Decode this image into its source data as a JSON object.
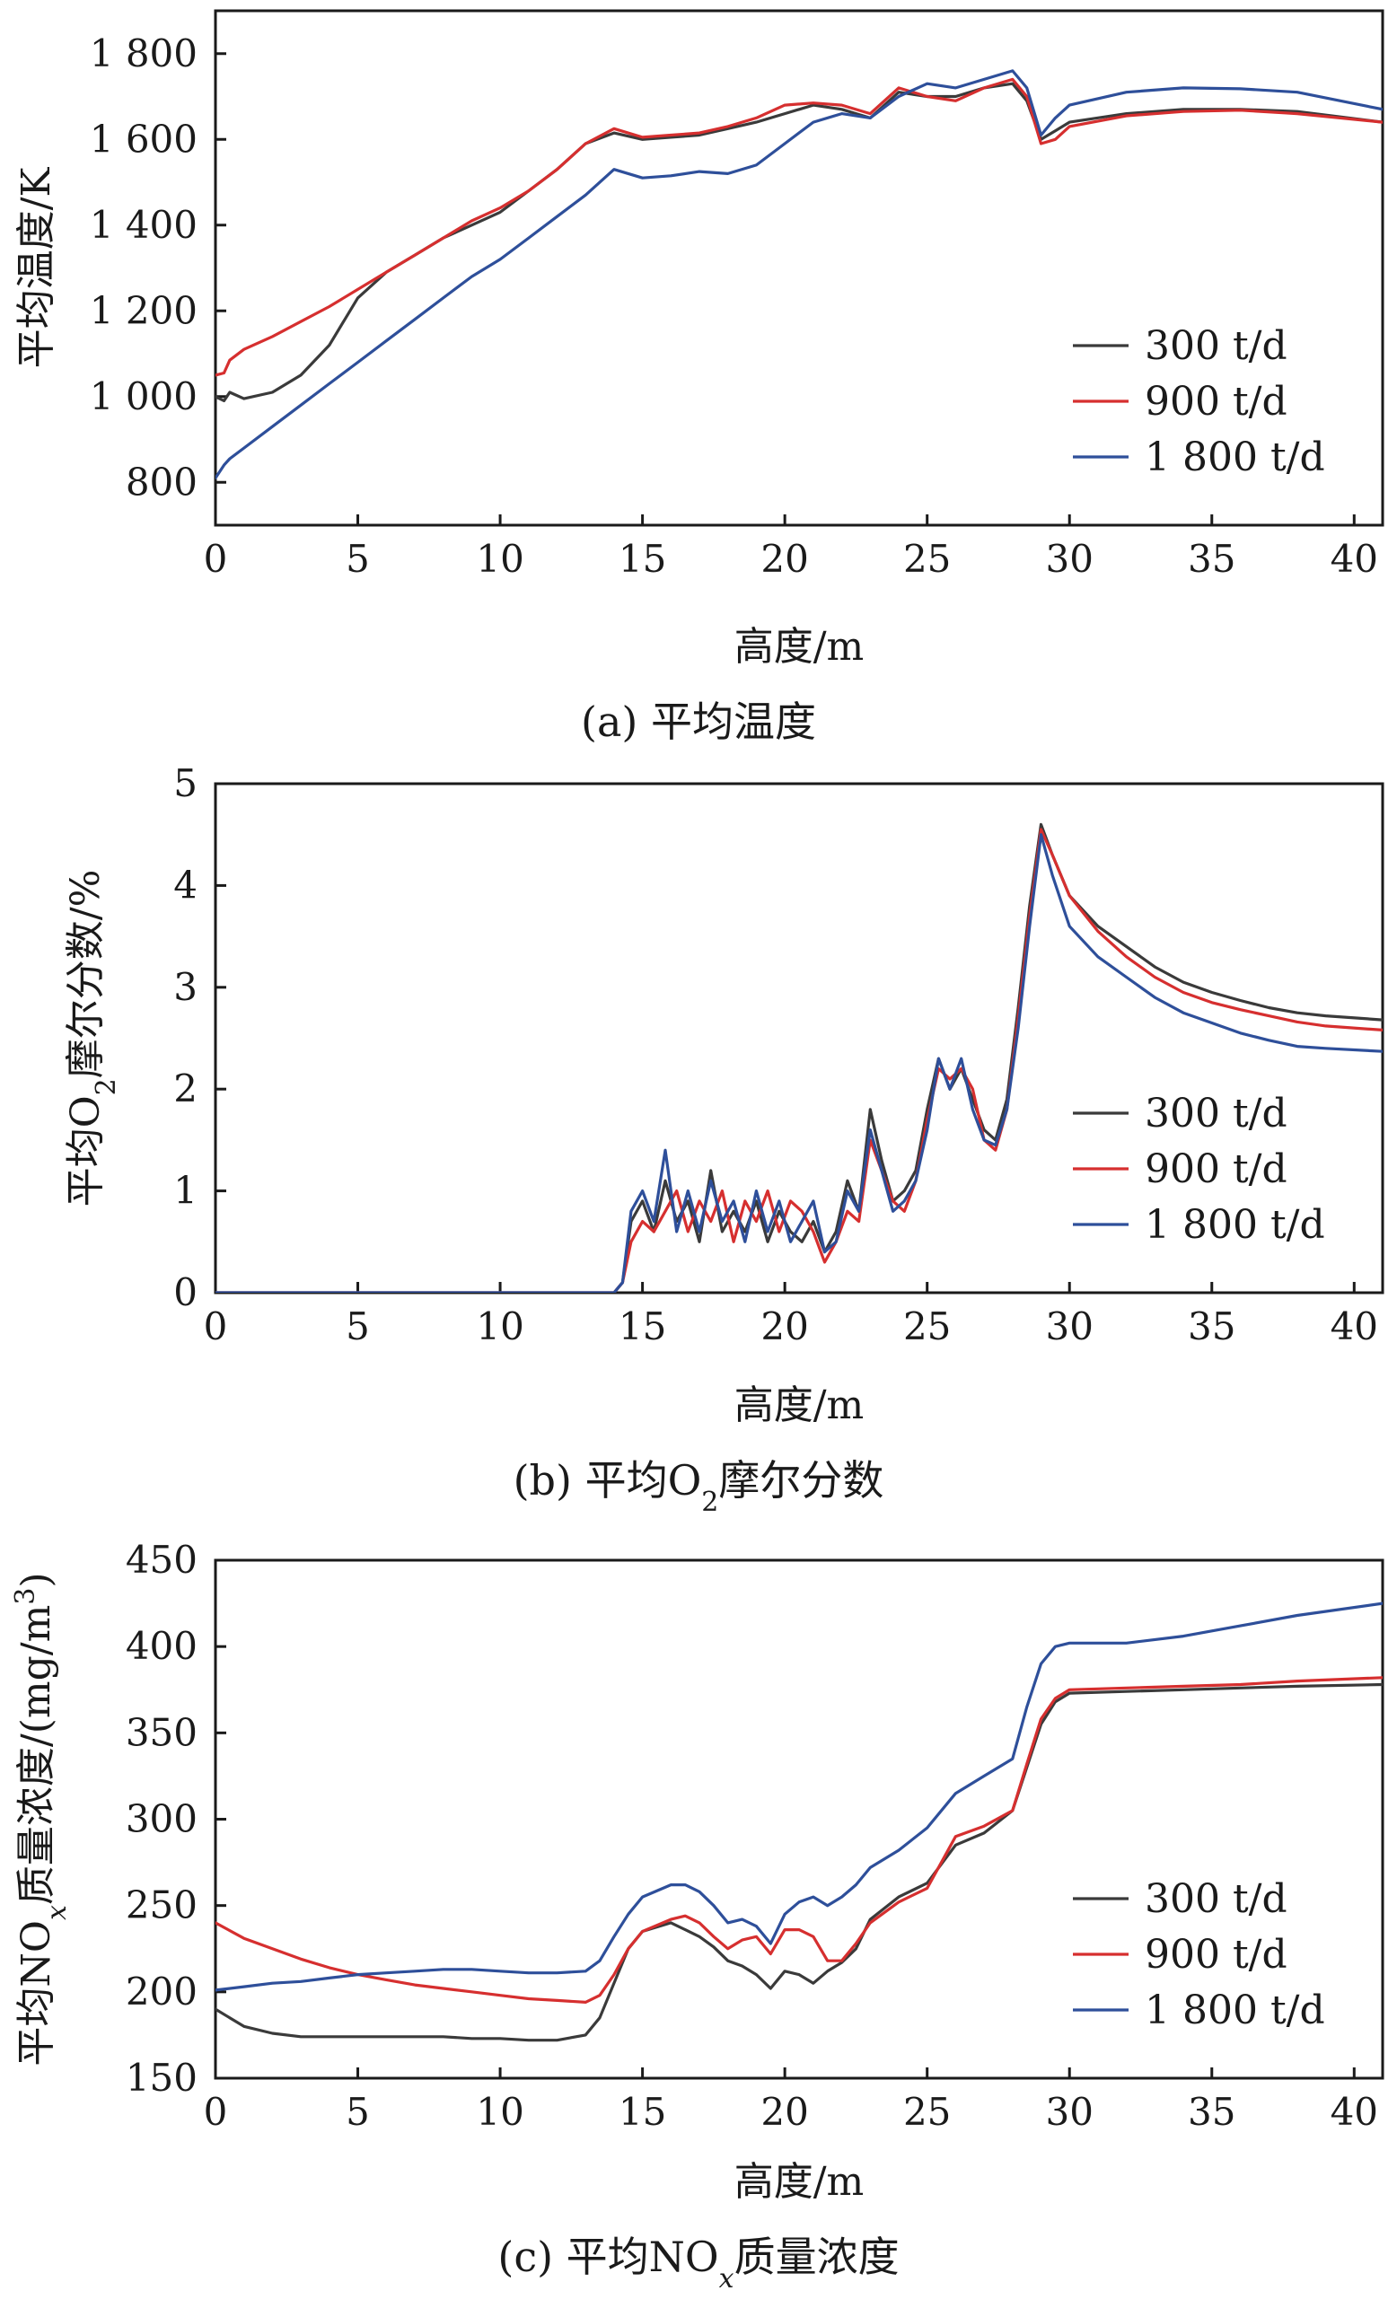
{
  "colors": {
    "s300": "#3a3a3a",
    "s900": "#d62f2f",
    "s1800": "#2e4f9a"
  },
  "chart_data": [
    {
      "id": "a",
      "type": "line",
      "ylabel": "平均温度/K",
      "xlabel": "高度/m",
      "caption": "(a) 平均温度",
      "xlim": [
        0,
        41
      ],
      "ylim": [
        700,
        1900
      ],
      "xticks": [
        0,
        5,
        10,
        15,
        20,
        25,
        30,
        35,
        40
      ],
      "xtick_labels": [
        "0",
        "5",
        "10",
        "15",
        "20",
        "25",
        "30",
        "35",
        "40"
      ],
      "yticks": [
        800,
        1000,
        1200,
        1400,
        1600,
        1800
      ],
      "ytick_labels": [
        "800",
        "1 000",
        "1 200",
        "1 400",
        "1 600",
        "1 800"
      ],
      "legend": [
        "300 t/d",
        "900 t/d",
        "1 800 t/d"
      ],
      "series": [
        {
          "name": "300 t/d",
          "x": [
            0,
            0.3,
            0.5,
            1,
            2,
            3,
            4,
            5,
            6,
            7,
            8,
            9,
            10,
            11,
            12,
            13,
            14,
            15,
            16,
            17,
            18,
            19,
            20,
            21,
            22,
            23,
            24,
            25,
            26,
            27,
            28,
            28.5,
            29,
            29.5,
            30,
            32,
            34,
            36,
            38,
            41
          ],
          "y": [
            1000,
            990,
            1010,
            995,
            1010,
            1050,
            1120,
            1230,
            1290,
            1330,
            1370,
            1400,
            1430,
            1480,
            1530,
            1590,
            1615,
            1600,
            1605,
            1610,
            1625,
            1640,
            1660,
            1680,
            1670,
            1650,
            1710,
            1700,
            1700,
            1720,
            1730,
            1690,
            1600,
            1620,
            1640,
            1660,
            1670,
            1670,
            1665,
            1640
          ]
        },
        {
          "name": "900 t/d",
          "x": [
            0,
            0.3,
            0.5,
            1,
            2,
            3,
            4,
            5,
            6,
            7,
            8,
            9,
            10,
            11,
            12,
            13,
            14,
            15,
            16,
            17,
            18,
            19,
            20,
            21,
            22,
            23,
            24,
            25,
            26,
            27,
            28,
            28.5,
            29,
            29.5,
            30,
            32,
            34,
            36,
            38,
            41
          ],
          "y": [
            1050,
            1055,
            1085,
            1110,
            1140,
            1175,
            1210,
            1250,
            1290,
            1330,
            1370,
            1410,
            1440,
            1480,
            1530,
            1590,
            1625,
            1605,
            1610,
            1615,
            1630,
            1650,
            1680,
            1685,
            1680,
            1660,
            1720,
            1700,
            1690,
            1720,
            1740,
            1700,
            1590,
            1600,
            1630,
            1655,
            1665,
            1668,
            1660,
            1640
          ]
        },
        {
          "name": "1 800 t/d",
          "x": [
            0,
            0.3,
            0.5,
            1,
            2,
            3,
            4,
            5,
            6,
            7,
            8,
            9,
            10,
            11,
            12,
            13,
            14,
            15,
            16,
            17,
            18,
            19,
            20,
            21,
            22,
            23,
            24,
            25,
            26,
            27,
            28,
            28.5,
            29,
            29.5,
            30,
            32,
            34,
            36,
            38,
            41
          ],
          "y": [
            810,
            840,
            855,
            880,
            930,
            980,
            1030,
            1080,
            1130,
            1180,
            1230,
            1280,
            1320,
            1370,
            1420,
            1470,
            1530,
            1510,
            1515,
            1525,
            1520,
            1540,
            1590,
            1640,
            1660,
            1650,
            1700,
            1730,
            1720,
            1740,
            1760,
            1720,
            1610,
            1650,
            1680,
            1710,
            1720,
            1718,
            1710,
            1670
          ]
        }
      ]
    },
    {
      "id": "b",
      "type": "line",
      "ylabel": "平均O",
      "ylabel_sub": "2",
      "ylabel_rest": "摩尔分数/%",
      "xlabel": "高度/m",
      "caption": "(b) 平均O",
      "caption_sub": "2",
      "caption_rest": "摩尔分数",
      "xlim": [
        0,
        41
      ],
      "ylim": [
        0,
        5
      ],
      "xticks": [
        0,
        5,
        10,
        15,
        20,
        25,
        30,
        35,
        40
      ],
      "xtick_labels": [
        "0",
        "5",
        "10",
        "15",
        "20",
        "25",
        "30",
        "35",
        "40"
      ],
      "yticks": [
        0,
        1,
        2,
        3,
        4,
        5
      ],
      "ytick_labels": [
        "0",
        "1",
        "2",
        "3",
        "4",
        "5"
      ],
      "legend": [
        "300 t/d",
        "900 t/d",
        "1 800 t/d"
      ],
      "series": [
        {
          "name": "300 t/d",
          "x": [
            0,
            14,
            14.3,
            14.6,
            15,
            15.4,
            15.8,
            16.2,
            16.6,
            17,
            17.4,
            17.8,
            18.2,
            18.6,
            19,
            19.4,
            19.8,
            20.2,
            20.6,
            21,
            21.4,
            21.8,
            22.2,
            22.6,
            23,
            23.4,
            23.8,
            24.2,
            24.6,
            25,
            25.4,
            25.8,
            26.2,
            26.6,
            27,
            27.4,
            27.8,
            28.2,
            28.6,
            29,
            29.4,
            30,
            31,
            32,
            33,
            34,
            35,
            36,
            37,
            38,
            39,
            41
          ],
          "y": [
            0,
            0,
            0.1,
            0.7,
            0.9,
            0.6,
            1.1,
            0.7,
            0.9,
            0.5,
            1.2,
            0.6,
            0.8,
            0.6,
            0.9,
            0.5,
            0.8,
            0.6,
            0.5,
            0.7,
            0.4,
            0.6,
            1.1,
            0.8,
            1.8,
            1.3,
            0.9,
            1.0,
            1.2,
            1.8,
            2.3,
            2.0,
            2.2,
            1.9,
            1.6,
            1.5,
            1.9,
            2.8,
            3.8,
            4.6,
            4.3,
            3.9,
            3.6,
            3.4,
            3.2,
            3.05,
            2.95,
            2.87,
            2.8,
            2.75,
            2.72,
            2.68
          ]
        },
        {
          "name": "900 t/d",
          "x": [
            0,
            14,
            14.3,
            14.6,
            15,
            15.4,
            15.8,
            16.2,
            16.6,
            17,
            17.4,
            17.8,
            18.2,
            18.6,
            19,
            19.4,
            19.8,
            20.2,
            20.6,
            21,
            21.4,
            21.8,
            22.2,
            22.6,
            23,
            23.4,
            23.8,
            24.2,
            24.6,
            25,
            25.4,
            25.8,
            26.2,
            26.6,
            27,
            27.4,
            27.8,
            28.2,
            28.6,
            29,
            29.4,
            30,
            31,
            32,
            33,
            34,
            35,
            36,
            37,
            38,
            39,
            41
          ],
          "y": [
            0,
            0,
            0.1,
            0.5,
            0.7,
            0.6,
            0.8,
            1.0,
            0.6,
            0.9,
            0.7,
            1.0,
            0.5,
            0.9,
            0.7,
            1.0,
            0.6,
            0.9,
            0.8,
            0.6,
            0.3,
            0.5,
            0.8,
            0.7,
            1.5,
            1.2,
            0.9,
            0.8,
            1.1,
            1.7,
            2.2,
            2.1,
            2.2,
            2.0,
            1.5,
            1.4,
            1.8,
            2.7,
            3.7,
            4.55,
            4.3,
            3.9,
            3.55,
            3.3,
            3.1,
            2.95,
            2.85,
            2.78,
            2.72,
            2.66,
            2.62,
            2.58
          ]
        },
        {
          "name": "1 800 t/d",
          "x": [
            0,
            14,
            14.3,
            14.6,
            15,
            15.4,
            15.8,
            16.2,
            16.6,
            17,
            17.4,
            17.8,
            18.2,
            18.6,
            19,
            19.4,
            19.8,
            20.2,
            20.6,
            21,
            21.4,
            21.8,
            22.2,
            22.6,
            23,
            23.4,
            23.8,
            24.2,
            24.6,
            25,
            25.4,
            25.8,
            26.2,
            26.6,
            27,
            27.4,
            27.8,
            28.2,
            28.6,
            29,
            29.4,
            30,
            31,
            32,
            33,
            34,
            35,
            36,
            37,
            38,
            39,
            41
          ],
          "y": [
            0,
            0,
            0.1,
            0.8,
            1.0,
            0.7,
            1.4,
            0.6,
            1.0,
            0.6,
            1.1,
            0.7,
            0.9,
            0.5,
            1.0,
            0.6,
            0.9,
            0.5,
            0.7,
            0.9,
            0.4,
            0.5,
            1.0,
            0.8,
            1.6,
            1.2,
            0.8,
            0.9,
            1.1,
            1.6,
            2.3,
            2.0,
            2.3,
            1.8,
            1.5,
            1.45,
            1.8,
            2.6,
            3.6,
            4.5,
            4.1,
            3.6,
            3.3,
            3.1,
            2.9,
            2.75,
            2.65,
            2.55,
            2.48,
            2.42,
            2.4,
            2.37
          ]
        }
      ]
    },
    {
      "id": "c",
      "type": "line",
      "ylabel": "平均NO",
      "ylabel_sub": "x",
      "ylabel_rest": "质量浓度/(mg/m",
      "ylabel_sup": "3",
      "ylabel_end": ")",
      "xlabel": "高度/m",
      "caption": "(c) 平均NO",
      "caption_sub": "x",
      "caption_rest": "质量浓度",
      "xlim": [
        0,
        41
      ],
      "ylim": [
        150,
        450
      ],
      "xticks": [
        0,
        5,
        10,
        15,
        20,
        25,
        30,
        35,
        40
      ],
      "xtick_labels": [
        "0",
        "5",
        "10",
        "15",
        "20",
        "25",
        "30",
        "35",
        "40"
      ],
      "yticks": [
        150,
        200,
        250,
        300,
        350,
        400,
        450
      ],
      "ytick_labels": [
        "150",
        "200",
        "250",
        "300",
        "350",
        "400",
        "450"
      ],
      "legend": [
        "300 t/d",
        "900 t/d",
        "1 800 t/d"
      ],
      "series": [
        {
          "name": "300 t/d",
          "x": [
            0,
            1,
            2,
            3,
            4,
            5,
            6,
            7,
            8,
            9,
            10,
            11,
            12,
            13,
            13.5,
            14,
            14.5,
            15,
            16,
            16.5,
            17,
            17.5,
            18,
            18.5,
            19,
            19.5,
            20,
            20.5,
            21,
            21.5,
            22,
            22.5,
            23,
            24,
            25,
            26,
            27,
            28,
            28.5,
            29,
            29.5,
            30,
            32,
            34,
            36,
            38,
            41
          ],
          "y": [
            190,
            180,
            176,
            174,
            174,
            174,
            174,
            174,
            174,
            173,
            173,
            172,
            172,
            175,
            185,
            205,
            225,
            235,
            240,
            236,
            232,
            226,
            218,
            215,
            210,
            202,
            212,
            210,
            205,
            212,
            217,
            225,
            242,
            255,
            263,
            285,
            292,
            305,
            330,
            355,
            368,
            373,
            374,
            375,
            376,
            377,
            378
          ]
        },
        {
          "name": "900 t/d",
          "x": [
            0,
            1,
            2,
            3,
            4,
            5,
            6,
            7,
            8,
            9,
            10,
            11,
            12,
            13,
            13.5,
            14,
            14.5,
            15,
            16,
            16.5,
            17,
            17.5,
            18,
            18.5,
            19,
            19.5,
            20,
            20.5,
            21,
            21.5,
            22,
            22.5,
            23,
            24,
            25,
            26,
            27,
            28,
            28.5,
            29,
            29.5,
            30,
            32,
            34,
            36,
            38,
            41
          ],
          "y": [
            240,
            231,
            225,
            219,
            214,
            210,
            207,
            204,
            202,
            200,
            198,
            196,
            195,
            194,
            198,
            210,
            225,
            235,
            242,
            244,
            240,
            232,
            225,
            230,
            232,
            222,
            236,
            236,
            232,
            218,
            218,
            228,
            240,
            252,
            260,
            290,
            296,
            305,
            332,
            358,
            370,
            375,
            376,
            377,
            378,
            380,
            382
          ]
        },
        {
          "name": "1 800 t/d",
          "x": [
            0,
            1,
            2,
            3,
            4,
            5,
            6,
            7,
            8,
            9,
            10,
            11,
            12,
            13,
            13.5,
            14,
            14.5,
            15,
            16,
            16.5,
            17,
            17.5,
            18,
            18.5,
            19,
            19.5,
            20,
            20.5,
            21,
            21.5,
            22,
            22.5,
            23,
            24,
            25,
            26,
            27,
            28,
            28.5,
            29,
            29.5,
            30,
            32,
            34,
            36,
            38,
            41
          ],
          "y": [
            201,
            203,
            205,
            206,
            208,
            210,
            211,
            212,
            213,
            213,
            212,
            211,
            211,
            212,
            218,
            232,
            245,
            255,
            262,
            262,
            258,
            250,
            240,
            242,
            238,
            228,
            245,
            252,
            255,
            250,
            255,
            262,
            272,
            282,
            295,
            315,
            325,
            335,
            365,
            390,
            400,
            402,
            402,
            406,
            412,
            418,
            425
          ]
        }
      ]
    }
  ]
}
